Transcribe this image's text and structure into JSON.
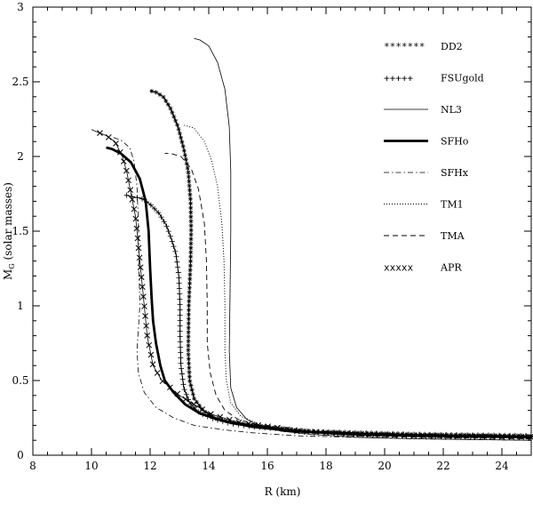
{
  "chart_data": {
    "type": "line",
    "title": "",
    "xlabel": "R (km)",
    "ylabel_main": "M",
    "ylabel_sub": "G",
    "ylabel_rest": " (solar masses)",
    "xlim": [
      8,
      25
    ],
    "ylim": [
      0,
      3
    ],
    "xticks": [
      8,
      10,
      12,
      14,
      16,
      18,
      20,
      22,
      24
    ],
    "yticks": [
      0,
      0.5,
      1,
      1.5,
      2,
      2.5,
      3
    ],
    "xtick_labels": [
      "8",
      "10",
      "12",
      "14",
      "16",
      "18",
      "20",
      "22",
      "24"
    ],
    "ytick_labels": [
      "0",
      "0.5",
      "1",
      "1.5",
      "2",
      "2.5",
      "3"
    ],
    "legend_placement": "top-right",
    "grid": false,
    "series": [
      {
        "name": "DD2",
        "legend_sample": "*******",
        "style": "star",
        "points": [
          [
            25,
            0.13
          ],
          [
            23,
            0.135
          ],
          [
            21,
            0.14
          ],
          [
            19,
            0.15
          ],
          [
            17.5,
            0.16
          ],
          [
            16.5,
            0.18
          ],
          [
            15.5,
            0.2
          ],
          [
            14.8,
            0.22
          ],
          [
            14.2,
            0.25
          ],
          [
            13.8,
            0.3
          ],
          [
            13.5,
            0.38
          ],
          [
            13.35,
            0.5
          ],
          [
            13.3,
            0.7
          ],
          [
            13.32,
            1.0
          ],
          [
            13.38,
            1.3
          ],
          [
            13.4,
            1.5
          ],
          [
            13.38,
            1.7
          ],
          [
            13.3,
            1.9
          ],
          [
            13.15,
            2.05
          ],
          [
            12.95,
            2.2
          ],
          [
            12.7,
            2.32
          ],
          [
            12.45,
            2.4
          ],
          [
            12.2,
            2.43
          ],
          [
            12.0,
            2.44
          ]
        ]
      },
      {
        "name": "FSUgold",
        "legend_sample": "+++++",
        "style": "plus",
        "points": [
          [
            25,
            0.13
          ],
          [
            23,
            0.135
          ],
          [
            21,
            0.14
          ],
          [
            19,
            0.15
          ],
          [
            17.5,
            0.16
          ],
          [
            16.5,
            0.175
          ],
          [
            15.5,
            0.19
          ],
          [
            14.8,
            0.21
          ],
          [
            14.2,
            0.24
          ],
          [
            13.7,
            0.28
          ],
          [
            13.35,
            0.35
          ],
          [
            13.15,
            0.45
          ],
          [
            13.05,
            0.6
          ],
          [
            13.02,
            0.8
          ],
          [
            13.02,
            1.0
          ],
          [
            12.98,
            1.2
          ],
          [
            12.88,
            1.35
          ],
          [
            12.72,
            1.45
          ],
          [
            12.55,
            1.54
          ],
          [
            12.3,
            1.62
          ],
          [
            12.0,
            1.68
          ],
          [
            11.7,
            1.72
          ],
          [
            11.4,
            1.73
          ],
          [
            11.2,
            1.74
          ]
        ]
      },
      {
        "name": "NL3",
        "legend_sample": "",
        "style": "thin",
        "points": [
          [
            25,
            0.1
          ],
          [
            23,
            0.105
          ],
          [
            21,
            0.11
          ],
          [
            19,
            0.12
          ],
          [
            17.5,
            0.14
          ],
          [
            16.5,
            0.16
          ],
          [
            15.8,
            0.19
          ],
          [
            15.3,
            0.24
          ],
          [
            14.95,
            0.32
          ],
          [
            14.75,
            0.45
          ],
          [
            14.7,
            0.7
          ],
          [
            14.72,
            1.0
          ],
          [
            14.75,
            1.5
          ],
          [
            14.75,
            1.9
          ],
          [
            14.7,
            2.2
          ],
          [
            14.55,
            2.45
          ],
          [
            14.3,
            2.63
          ],
          [
            14.0,
            2.74
          ],
          [
            13.7,
            2.78
          ],
          [
            13.5,
            2.79
          ]
        ]
      },
      {
        "name": "SFHo",
        "legend_sample": "",
        "style": "thick",
        "points": [
          [
            25,
            0.12
          ],
          [
            23,
            0.125
          ],
          [
            21,
            0.13
          ],
          [
            19,
            0.14
          ],
          [
            17,
            0.16
          ],
          [
            15.5,
            0.19
          ],
          [
            14.5,
            0.23
          ],
          [
            13.7,
            0.28
          ],
          [
            13.2,
            0.34
          ],
          [
            12.8,
            0.42
          ],
          [
            12.5,
            0.5
          ],
          [
            12.35,
            0.6
          ],
          [
            12.2,
            0.75
          ],
          [
            12.1,
            0.9
          ],
          [
            12.05,
            1.05
          ],
          [
            12.0,
            1.25
          ],
          [
            11.95,
            1.5
          ],
          [
            11.85,
            1.7
          ],
          [
            11.65,
            1.85
          ],
          [
            11.35,
            1.96
          ],
          [
            11.0,
            2.02
          ],
          [
            10.7,
            2.05
          ],
          [
            10.5,
            2.06
          ]
        ]
      },
      {
        "name": "SFHx",
        "legend_sample": "",
        "style": "dashdot",
        "points": [
          [
            25,
            0.1
          ],
          [
            23,
            0.105
          ],
          [
            21,
            0.11
          ],
          [
            19,
            0.12
          ],
          [
            17,
            0.13
          ],
          [
            15.5,
            0.15
          ],
          [
            14.5,
            0.17
          ],
          [
            13.5,
            0.2
          ],
          [
            12.8,
            0.25
          ],
          [
            12.2,
            0.32
          ],
          [
            11.8,
            0.42
          ],
          [
            11.6,
            0.55
          ],
          [
            11.55,
            0.7
          ],
          [
            11.6,
            0.85
          ],
          [
            11.65,
            1.0
          ],
          [
            11.62,
            1.25
          ],
          [
            11.6,
            1.55
          ],
          [
            11.55,
            1.8
          ],
          [
            11.45,
            1.97
          ],
          [
            11.3,
            2.06
          ],
          [
            11.0,
            2.11
          ],
          [
            10.7,
            2.13
          ]
        ]
      },
      {
        "name": "TM1",
        "legend_sample": "",
        "style": "dotted",
        "points": [
          [
            25,
            0.12
          ],
          [
            23,
            0.125
          ],
          [
            21,
            0.13
          ],
          [
            19,
            0.14
          ],
          [
            17.5,
            0.16
          ],
          [
            16.5,
            0.18
          ],
          [
            15.7,
            0.21
          ],
          [
            15.1,
            0.26
          ],
          [
            14.75,
            0.35
          ],
          [
            14.6,
            0.5
          ],
          [
            14.55,
            0.7
          ],
          [
            14.55,
            1.0
          ],
          [
            14.52,
            1.3
          ],
          [
            14.45,
            1.55
          ],
          [
            14.3,
            1.8
          ],
          [
            14.1,
            1.97
          ],
          [
            13.85,
            2.1
          ],
          [
            13.5,
            2.19
          ],
          [
            13.15,
            2.21
          ]
        ]
      },
      {
        "name": "TMA",
        "legend_sample": "",
        "style": "dashed",
        "points": [
          [
            25,
            0.11
          ],
          [
            23,
            0.115
          ],
          [
            21,
            0.12
          ],
          [
            19,
            0.13
          ],
          [
            17.5,
            0.15
          ],
          [
            16.5,
            0.17
          ],
          [
            15.7,
            0.2
          ],
          [
            15.0,
            0.24
          ],
          [
            14.55,
            0.3
          ],
          [
            14.25,
            0.4
          ],
          [
            14.05,
            0.55
          ],
          [
            13.95,
            0.75
          ],
          [
            13.95,
            1.0
          ],
          [
            13.92,
            1.3
          ],
          [
            13.85,
            1.55
          ],
          [
            13.65,
            1.78
          ],
          [
            13.4,
            1.92
          ],
          [
            13.05,
            2.0
          ],
          [
            12.7,
            2.02
          ],
          [
            12.5,
            2.02
          ]
        ]
      },
      {
        "name": "APR",
        "legend_sample": "xxxxx",
        "style": "cross",
        "points": [
          [
            25,
            0.12
          ],
          [
            23,
            0.125
          ],
          [
            21,
            0.13
          ],
          [
            19,
            0.14
          ],
          [
            17,
            0.16
          ],
          [
            16.5,
            0.18
          ],
          [
            15,
            0.22
          ],
          [
            14,
            0.28
          ],
          [
            13.0,
            0.4
          ],
          [
            12.4,
            0.5
          ],
          [
            12.1,
            0.6
          ],
          [
            11.9,
            0.8
          ],
          [
            11.8,
            1.0
          ],
          [
            11.75,
            1.1
          ],
          [
            11.7,
            1.2
          ],
          [
            11.65,
            1.3
          ],
          [
            11.6,
            1.4
          ],
          [
            11.55,
            1.5
          ],
          [
            11.5,
            1.6
          ],
          [
            11.4,
            1.7
          ],
          [
            11.3,
            1.8
          ],
          [
            11.2,
            1.9
          ],
          [
            11.05,
            2.0
          ],
          [
            10.8,
            2.1
          ],
          [
            10.5,
            2.14
          ],
          [
            10.0,
            2.18
          ]
        ]
      }
    ]
  }
}
